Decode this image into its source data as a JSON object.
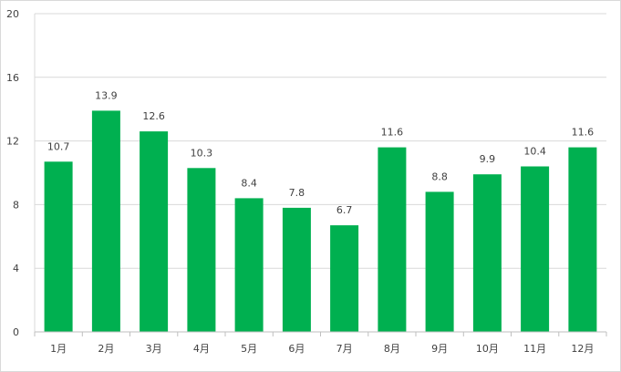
{
  "chart_data": {
    "type": "bar",
    "title": "",
    "xlabel": "",
    "ylabel": "",
    "categories": [
      "1月",
      "2月",
      "3月",
      "4月",
      "5月",
      "6月",
      "7月",
      "8月",
      "9月",
      "10月",
      "11月",
      "12月"
    ],
    "values": [
      10.7,
      13.9,
      12.6,
      10.3,
      8.4,
      7.8,
      6.7,
      11.6,
      8.8,
      9.9,
      10.4,
      11.6
    ],
    "value_labels": [
      "10.7",
      "13.9",
      "12.6",
      "10.3",
      "8.4",
      "7.8",
      "6.7",
      "11.6",
      "8.8",
      "9.9",
      "10.4",
      "11.6"
    ],
    "ylim": [
      0,
      20
    ],
    "yticks": [
      0,
      4,
      8,
      12,
      16,
      20
    ],
    "ytick_labels": [
      "0",
      "4",
      "8",
      "12",
      "16",
      "20"
    ],
    "grid": true,
    "legend": "none",
    "colors": {
      "bar": "#00b050",
      "grid": "#d9d9d9",
      "axis": "#bfbfbf",
      "text": "#404040",
      "plot_border": "#d9d9d9"
    }
  }
}
